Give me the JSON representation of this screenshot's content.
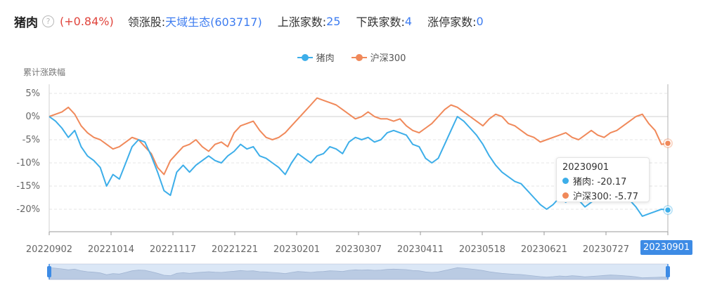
{
  "header": {
    "name": "猪肉",
    "help_icon": "?",
    "change": "(+0.84%)",
    "lead_label": "领涨股:",
    "lead_value": "天域生态(603717)",
    "up_label": "上涨家数:",
    "up_value": "25",
    "down_label": "下跌家数:",
    "down_value": "4",
    "limit_label": "涨停家数:",
    "limit_value": "0"
  },
  "colors": {
    "pork": "#3daee9",
    "hs300": "#f0895a",
    "up": "#e0443c",
    "link": "#3d7cf0"
  },
  "tooltip": {
    "date": "20230901",
    "pork": "猪肉: -20.17",
    "hs300": "沪深300: -5.77"
  },
  "axis_badge": "20230901",
  "chart_data": {
    "type": "line",
    "ylabel": "累计涨跌幅",
    "yticks": [
      "5%",
      "0%",
      "-5%",
      "-10%",
      "-15%",
      "-20%"
    ],
    "ylim": [
      -25,
      7
    ],
    "xticks": [
      "20220902",
      "20221014",
      "20221117",
      "20221221",
      "20230201",
      "20230307",
      "20230411",
      "20230518",
      "20230621",
      "20230727",
      "20230901"
    ],
    "series": [
      {
        "name": "猪肉",
        "values": [
          0,
          -1,
          -2.5,
          -4.5,
          -3,
          -6.5,
          -8.5,
          -9.5,
          -11,
          -15,
          -12.5,
          -13.5,
          -10,
          -6.5,
          -5,
          -5.5,
          -8.5,
          -12,
          -16,
          -17,
          -12,
          -10.5,
          -12,
          -10.5,
          -9.5,
          -8.5,
          -9.5,
          -10,
          -8.5,
          -7.5,
          -6,
          -7,
          -6.5,
          -8.5,
          -9,
          -10,
          -11,
          -12.5,
          -10,
          -8,
          -9,
          -10,
          -8.5,
          -8,
          -6.5,
          -7,
          -8,
          -5.5,
          -4.5,
          -5,
          -4.5,
          -5.5,
          -5,
          -3.5,
          -3,
          -3.5,
          -4,
          -6,
          -6.5,
          -9,
          -10,
          -9,
          -6,
          -3,
          0,
          -1,
          -2.5,
          -4,
          -6,
          -8.5,
          -10.5,
          -12,
          -13,
          -14,
          -14.5,
          -16,
          -17.5,
          -19,
          -20,
          -19,
          -17.5,
          -18.5,
          -17,
          -18,
          -19.5,
          -18.5,
          -17.5,
          -16.5,
          -15.5,
          -16,
          -17,
          -18,
          -19.5,
          -21.5,
          -21,
          -20.5,
          -20,
          -20.17
        ],
        "color": "#3daee9"
      },
      {
        "name": "沪深300",
        "values": [
          0,
          0.5,
          1,
          2,
          0.5,
          -2,
          -3.5,
          -4.5,
          -5,
          -6,
          -7,
          -6.5,
          -5.5,
          -4.5,
          -5,
          -6.5,
          -8,
          -11,
          -12.5,
          -9.5,
          -8,
          -6.5,
          -6,
          -5,
          -6.5,
          -7.5,
          -6,
          -5.5,
          -6.5,
          -3.5,
          -2,
          -1.5,
          -1,
          -3,
          -4.5,
          -5,
          -4.5,
          -3.5,
          -2,
          -0.5,
          1,
          2.5,
          4,
          3.5,
          3,
          2.5,
          1.5,
          0.5,
          -0.5,
          0,
          1,
          0,
          -0.5,
          -0.5,
          -1,
          -0.5,
          -2,
          -3,
          -3.5,
          -2.5,
          -1.5,
          0,
          1.5,
          2.5,
          2,
          1,
          0,
          -1,
          -2,
          -0.5,
          0.5,
          0,
          -1.5,
          -2,
          -3,
          -4,
          -4.5,
          -5.5,
          -5,
          -4.5,
          -4,
          -3.5,
          -4.5,
          -5,
          -4,
          -3,
          -4,
          -4.5,
          -3.5,
          -3,
          -2,
          -1,
          0,
          0.5,
          -1.5,
          -3,
          -6,
          -5.77
        ],
        "color": "#f0895a"
      }
    ],
    "legend_position": "top-center",
    "grid": true
  }
}
